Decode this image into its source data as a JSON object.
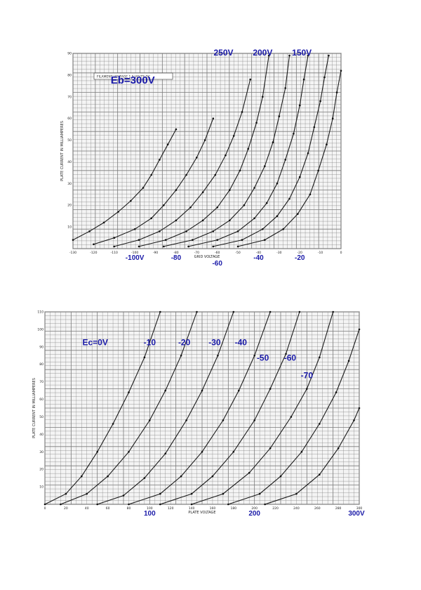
{
  "colors": {
    "annotation": "#1a1aa8",
    "grid": "#7a7a7a",
    "background": "#ffffff"
  },
  "chart_data": [
    {
      "type": "line",
      "title": "",
      "legend_box_text": "FILAMENT VOLTAGE 1.5 VOLTS DC",
      "xlabel": "GRID VOLTAGE",
      "ylabel": "PLATE CURRENT IN MILLIAMPERES",
      "xlim": [
        -130,
        0
      ],
      "ylim": [
        0,
        90
      ],
      "x_ticks": [
        "-130",
        "-120",
        "-110",
        "-100",
        "-90",
        "-80",
        "-70",
        "-60",
        "-50",
        "-40",
        "-30",
        "-20",
        "-10",
        "0"
      ],
      "y_ticks": [
        "10",
        "20",
        "30",
        "40",
        "50",
        "60",
        "70",
        "80",
        "90"
      ],
      "annotations": [
        {
          "text": "250V",
          "anchor_x": -57,
          "anchor_y": 89
        },
        {
          "text": "200V",
          "anchor_x": -38,
          "anchor_y": 89
        },
        {
          "text": "150V",
          "anchor_x": -19,
          "anchor_y": 89
        },
        {
          "text": "Eb=300V",
          "anchor_x": -101,
          "anchor_y": 76
        }
      ],
      "below_axis_labels": [
        {
          "text": "-100V",
          "at_x": -100
        },
        {
          "text": "-80",
          "at_x": -80
        },
        {
          "text": "-60",
          "at_x": -60
        },
        {
          "text": "-40",
          "at_x": -40
        },
        {
          "text": "-20",
          "at_x": -20
        }
      ],
      "series": [
        {
          "x": [
            -130,
            -122,
            -115,
            -108,
            -102,
            -96,
            -92,
            -88,
            -84,
            -80
          ],
          "y": [
            4,
            8,
            12,
            17,
            22,
            28,
            34,
            41,
            48,
            55
          ]
        },
        {
          "x": [
            -120,
            -110,
            -100,
            -92,
            -86,
            -80,
            -75,
            -70,
            -66,
            -62
          ],
          "y": [
            2,
            5,
            9,
            14,
            20,
            27,
            34,
            42,
            50,
            60
          ]
        },
        {
          "x": [
            -110,
            -98,
            -88,
            -80,
            -73,
            -67,
            -61,
            -56,
            -52,
            -48,
            -44
          ],
          "y": [
            1,
            4,
            8,
            13,
            19,
            26,
            34,
            43,
            52,
            63,
            78
          ]
        },
        {
          "x": [
            -98,
            -85,
            -75,
            -67,
            -60,
            -54,
            -49,
            -45,
            -41,
            -38,
            -35
          ],
          "y": [
            1,
            4,
            8,
            13,
            19,
            27,
            36,
            46,
            58,
            70,
            89
          ]
        },
        {
          "x": [
            -86,
            -72,
            -62,
            -54,
            -47,
            -42,
            -37,
            -33,
            -30,
            -27,
            -25
          ],
          "y": [
            1,
            4,
            8,
            13,
            20,
            28,
            38,
            49,
            61,
            74,
            89
          ]
        },
        {
          "x": [
            -74,
            -60,
            -50,
            -42,
            -36,
            -31,
            -27,
            -23,
            -20,
            -18,
            -16
          ],
          "y": [
            1,
            4,
            8,
            14,
            21,
            30,
            41,
            53,
            66,
            78,
            89
          ]
        },
        {
          "x": [
            -62,
            -48,
            -38,
            -31,
            -25,
            -20,
            -16,
            -13,
            -10,
            -8,
            -6
          ],
          "y": [
            1,
            4,
            9,
            15,
            23,
            33,
            44,
            56,
            68,
            79,
            89
          ]
        },
        {
          "x": [
            -50,
            -37,
            -28,
            -21,
            -15,
            -11,
            -7,
            -4,
            -2,
            0
          ],
          "y": [
            1,
            4,
            9,
            16,
            25,
            36,
            48,
            60,
            72,
            82
          ]
        }
      ]
    },
    {
      "type": "line",
      "title": "",
      "xlabel": "PLATE VOLTAGE",
      "ylabel": "PLATE CURRENT IN MILLIAMPERES",
      "xlim": [
        0,
        300
      ],
      "ylim": [
        0,
        110
      ],
      "x_ticks": [
        "0",
        "20",
        "40",
        "60",
        "80",
        "100",
        "120",
        "140",
        "160",
        "180",
        "200",
        "220",
        "240",
        "260",
        "280",
        "300"
      ],
      "y_ticks": [
        "10",
        "20",
        "30",
        "40",
        "50",
        "60",
        "70",
        "80",
        "90",
        "100",
        "110"
      ],
      "annotations": [
        {
          "text": "Ec=0V",
          "anchor_x": 48,
          "anchor_y": 91
        },
        {
          "text": "-10",
          "anchor_x": 100,
          "anchor_y": 91
        },
        {
          "text": "-20",
          "anchor_x": 133,
          "anchor_y": 91
        },
        {
          "text": "-30",
          "anchor_x": 162,
          "anchor_y": 91
        },
        {
          "text": "-40",
          "anchor_x": 187,
          "anchor_y": 91
        },
        {
          "text": "-50",
          "anchor_x": 208,
          "anchor_y": 82
        },
        {
          "text": "-60",
          "anchor_x": 234,
          "anchor_y": 82
        },
        {
          "text": "-70",
          "anchor_x": 250,
          "anchor_y": 72
        }
      ],
      "below_axis_labels": [
        {
          "text": "100",
          "at_x": 100
        },
        {
          "text": "200",
          "at_x": 200
        },
        {
          "text": "300V",
          "at_x": 300
        }
      ],
      "series": [
        {
          "name": "Ec=0V",
          "x": [
            0,
            20,
            35,
            50,
            65,
            80,
            95,
            110
          ],
          "y": [
            0,
            6,
            16,
            30,
            46,
            64,
            84,
            110
          ]
        },
        {
          "name": "-10",
          "x": [
            15,
            40,
            60,
            80,
            100,
            115,
            130,
            145
          ],
          "y": [
            0,
            6,
            16,
            30,
            48,
            65,
            85,
            110
          ]
        },
        {
          "name": "-20",
          "x": [
            50,
            75,
            95,
            115,
            135,
            150,
            165,
            180
          ],
          "y": [
            0,
            5,
            15,
            29,
            48,
            65,
            85,
            110
          ]
        },
        {
          "name": "-30",
          "x": [
            80,
            110,
            130,
            150,
            170,
            185,
            200,
            215
          ],
          "y": [
            0,
            6,
            16,
            30,
            48,
            65,
            85,
            110
          ]
        },
        {
          "name": "-40",
          "x": [
            110,
            140,
            160,
            180,
            200,
            215,
            230,
            243
          ],
          "y": [
            0,
            6,
            16,
            30,
            48,
            66,
            86,
            110
          ]
        },
        {
          "name": "-50",
          "x": [
            140,
            170,
            195,
            215,
            235,
            250,
            262,
            275
          ],
          "y": [
            0,
            6,
            18,
            32,
            50,
            66,
            84,
            110
          ]
        },
        {
          "name": "-60",
          "x": [
            175,
            205,
            225,
            245,
            262,
            278,
            290,
            300
          ],
          "y": [
            0,
            6,
            16,
            30,
            46,
            64,
            82,
            100
          ]
        },
        {
          "name": "-70",
          "x": [
            210,
            240,
            262,
            280,
            295,
            300
          ],
          "y": [
            0,
            6,
            17,
            32,
            48,
            55
          ]
        }
      ]
    }
  ]
}
